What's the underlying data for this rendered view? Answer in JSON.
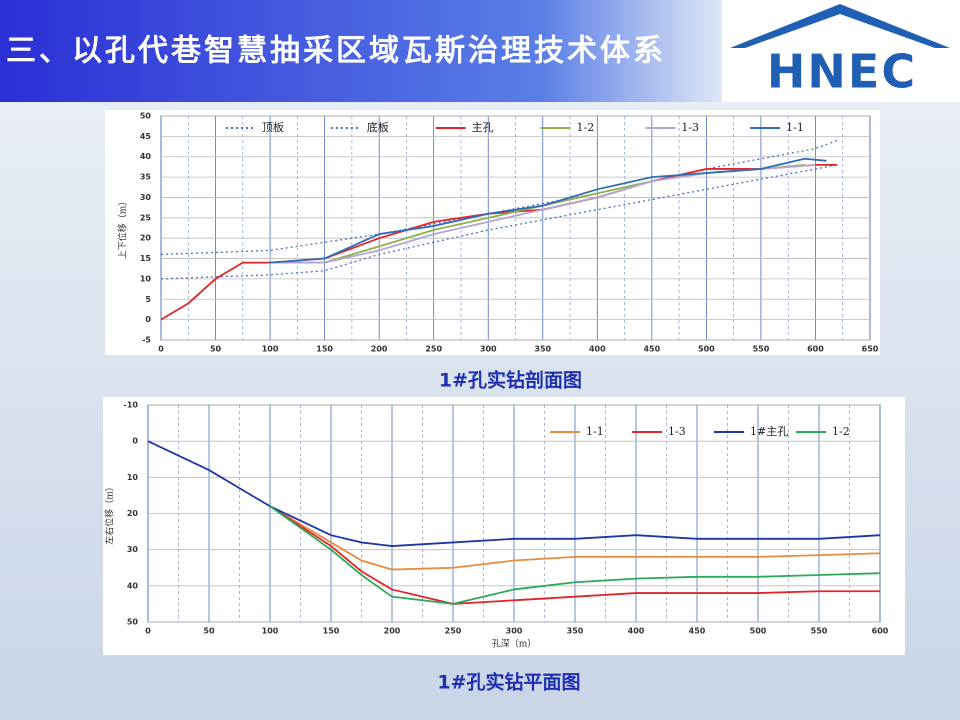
{
  "slide_title": "三、以孔代巷智慧抽采区域瓦斯治理技术体系",
  "logo": {
    "text": "HNEC"
  },
  "chart_data": [
    {
      "type": "line",
      "title": "1#孔实钻剖面图",
      "y_label": "上下位移（m）",
      "xlim": [
        0,
        650
      ],
      "xticks": [
        0,
        50,
        100,
        150,
        200,
        250,
        300,
        350,
        400,
        450,
        500,
        550,
        600,
        650
      ],
      "ylim": [
        -5,
        50
      ],
      "yticks": [
        -5,
        0,
        5,
        10,
        15,
        20,
        25,
        30,
        35,
        40,
        45,
        50
      ],
      "grid": true,
      "y_inverted": false,
      "legend": "top",
      "series": [
        {
          "name": "顶板",
          "color": "#4a6fc0",
          "dash": "dotted",
          "x": [
            0,
            100,
            200,
            300,
            400,
            500,
            600,
            620
          ],
          "values": [
            16,
            17,
            21,
            26,
            31,
            37,
            42,
            44
          ]
        },
        {
          "name": "底板",
          "color": "#4a6fc0",
          "dash": "dotted",
          "x": [
            0,
            100,
            150,
            200,
            300,
            400,
            500,
            600,
            620
          ],
          "values": [
            10,
            11,
            12,
            16,
            22,
            27,
            32,
            37,
            38
          ]
        },
        {
          "name": "主孔",
          "color": "#e0262a",
          "dash": "solid",
          "x": [
            0,
            25,
            50,
            75,
            100,
            150,
            200,
            250,
            300,
            350,
            400,
            450,
            500,
            550,
            600,
            620
          ],
          "values": [
            0,
            4,
            10,
            14,
            14,
            15,
            20,
            24,
            26,
            27,
            30,
            34,
            37,
            37,
            38,
            38
          ]
        },
        {
          "name": "1-2",
          "color": "#8fb04a",
          "dash": "solid",
          "x": [
            100,
            150,
            200,
            250,
            300,
            350,
            400,
            450,
            500,
            550,
            590
          ],
          "values": [
            14,
            14,
            18,
            22,
            25,
            28,
            31,
            34,
            36,
            37,
            38
          ]
        },
        {
          "name": "1-3",
          "color": "#b4a6d2",
          "dash": "solid",
          "x": [
            100,
            150,
            200,
            250,
            300,
            350,
            400,
            450,
            500,
            550,
            600
          ],
          "values": [
            14,
            14,
            17,
            21,
            24,
            27,
            30,
            34,
            36,
            37,
            38
          ]
        },
        {
          "name": "1-1",
          "color": "#2e6db4",
          "dash": "solid",
          "x": [
            100,
            150,
            200,
            250,
            300,
            350,
            400,
            450,
            500,
            550,
            590,
            610
          ],
          "values": [
            14,
            15,
            21,
            23,
            26,
            28,
            32,
            35,
            36,
            37,
            39.5,
            39
          ]
        }
      ]
    },
    {
      "type": "line",
      "title": "1#孔实钻平面图",
      "x_label": "孔深（m）",
      "y_label": "左右位移（m）",
      "xlim": [
        0,
        600
      ],
      "xticks": [
        0,
        50,
        100,
        150,
        200,
        250,
        300,
        350,
        400,
        450,
        500,
        550,
        600
      ],
      "ylim": [
        -10,
        50
      ],
      "yticks": [
        -10,
        0,
        10,
        20,
        30,
        40,
        50
      ],
      "grid": true,
      "y_inverted": true,
      "legend": "upper right",
      "series": [
        {
          "name": "1-1",
          "color": "#e98a3c",
          "dash": "solid",
          "x": [
            100,
            150,
            175,
            200,
            250,
            300,
            350,
            400,
            450,
            500,
            550,
            600
          ],
          "values": [
            18,
            28,
            33,
            35.5,
            35,
            33,
            32,
            32,
            32,
            32,
            31.5,
            31
          ]
        },
        {
          "name": "1-3",
          "color": "#e0262a",
          "dash": "solid",
          "x": [
            100,
            150,
            175,
            200,
            250,
            300,
            350,
            400,
            450,
            500,
            550,
            600
          ],
          "values": [
            18,
            29,
            36,
            41,
            45,
            44,
            43,
            42,
            42,
            42,
            41.5,
            41.5
          ]
        },
        {
          "name": "1#主孔",
          "color": "#1f35a8",
          "dash": "solid",
          "x": [
            0,
            50,
            100,
            125,
            150,
            175,
            200,
            250,
            300,
            350,
            400,
            450,
            500,
            550,
            600
          ],
          "values": [
            0,
            8,
            18,
            22,
            26,
            28,
            29,
            28,
            27,
            27,
            26,
            27,
            27,
            27,
            26
          ]
        },
        {
          "name": "1-2",
          "color": "#2ea85a",
          "dash": "solid",
          "x": [
            100,
            150,
            175,
            200,
            250,
            300,
            350,
            400,
            450,
            500,
            550,
            600
          ],
          "values": [
            18,
            30,
            37,
            43,
            45,
            41,
            39,
            38,
            37.5,
            37.5,
            37,
            36.5
          ]
        }
      ]
    }
  ]
}
